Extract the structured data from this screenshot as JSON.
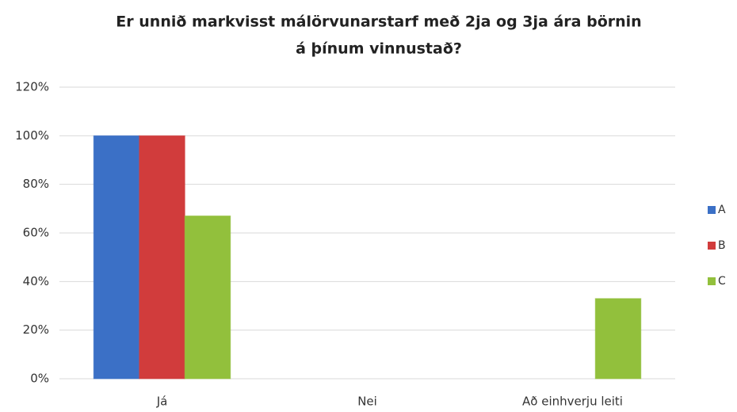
{
  "chart_data": {
    "type": "bar",
    "title": [
      "Er unnið markvisst málörvunarstarf með 2ja og 3ja ára börnin",
      "á þínum vinnustað?"
    ],
    "categories": [
      "Já",
      "Nei",
      "Að einhverju leiti"
    ],
    "series": [
      {
        "name": "A",
        "color": "#3b70c6",
        "values": [
          100,
          0,
          0
        ]
      },
      {
        "name": "B",
        "color": "#d13c3c",
        "values": [
          100,
          0,
          0
        ]
      },
      {
        "name": "C",
        "color": "#92c03c",
        "values": [
          67,
          0,
          33
        ]
      }
    ],
    "ylim": [
      0,
      120
    ],
    "yticks": [
      {
        "value": 0,
        "label": "0%"
      },
      {
        "value": 20,
        "label": "20%"
      },
      {
        "value": 40,
        "label": "40%"
      },
      {
        "value": 60,
        "label": "60%"
      },
      {
        "value": 80,
        "label": "80%"
      },
      {
        "value": 100,
        "label": "100%"
      },
      {
        "value": 120,
        "label": "120%"
      }
    ],
    "grid": true,
    "legend": "right"
  }
}
